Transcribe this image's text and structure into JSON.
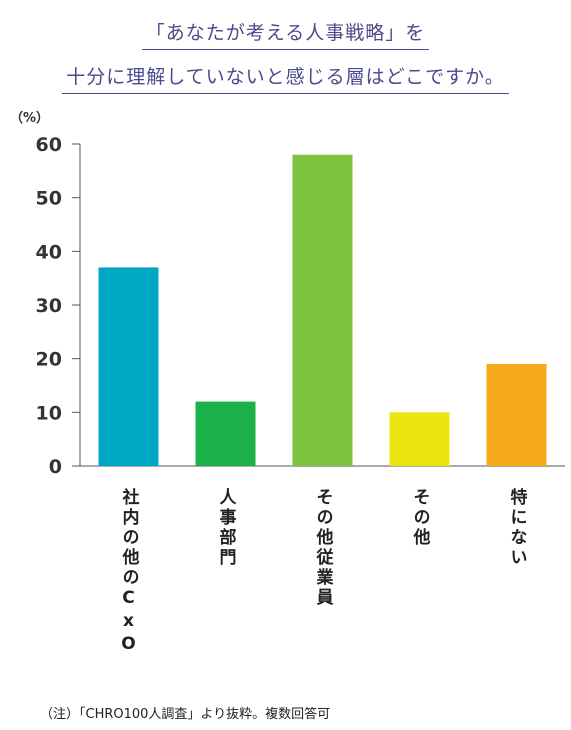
{
  "title_line1": "「あなたが考える人事戦略」を",
  "title_line2": "十分に理解していないと感じる層はどこですか。",
  "unit_label": "（%）",
  "note": "（注）「CHRO100人調査」より抜粋。複数回答可",
  "colors": {
    "title": "#4a4a8c",
    "axis": "#555555",
    "bars": [
      "#00a7c2",
      "#1bb04a",
      "#7dc23d",
      "#ede511",
      "#f5a91b"
    ]
  },
  "chart_data": {
    "type": "bar",
    "title": "「あなたが考える人事戦略」を十分に理解していないと感じる層はどこですか。",
    "categories": [
      "社内の他のCxO",
      "人事部門",
      "その他従業員",
      "その他",
      "特にない"
    ],
    "values": [
      37,
      12,
      58,
      10,
      19
    ],
    "ylabel": "（%）",
    "ylim": [
      0,
      60
    ],
    "yticks": [
      0,
      10,
      20,
      30,
      40,
      50,
      60
    ],
    "grid": false,
    "legend": "none"
  }
}
